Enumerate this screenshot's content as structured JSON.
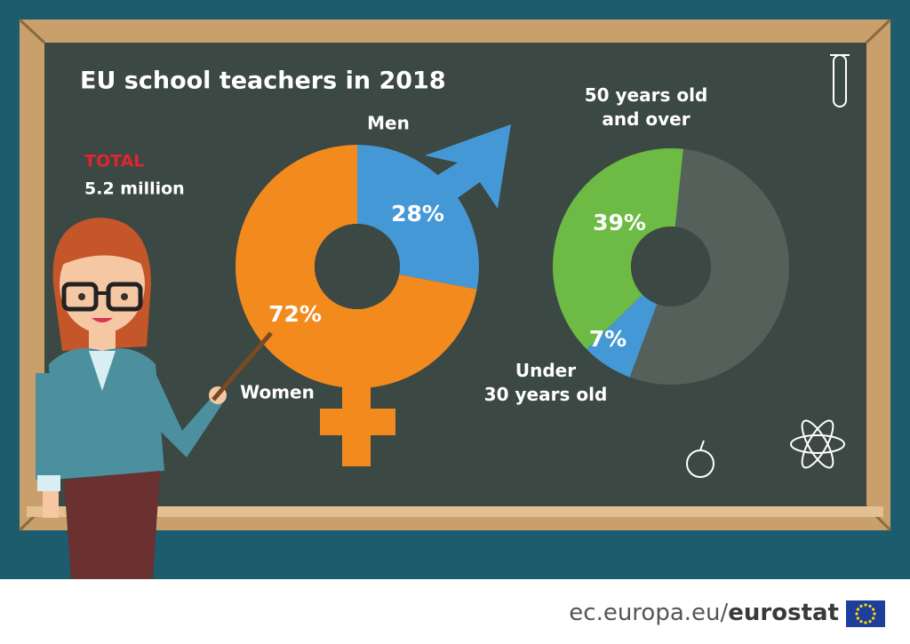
{
  "title": "EU school teachers in 2018",
  "total": {
    "label": "TOTAL",
    "value": "5.2 million"
  },
  "chart_data": [
    {
      "type": "donut",
      "categories": [
        "Men",
        "Women"
      ],
      "values": [
        28,
        72
      ],
      "value_labels": [
        "28%",
        "72%"
      ],
      "colors": [
        "#4598d6",
        "#f28a1e"
      ]
    },
    {
      "type": "donut",
      "categories": [
        null,
        "Under\n30 years old",
        "50 years old\nand over"
      ],
      "values": [
        54,
        7,
        39
      ],
      "value_labels": [
        null,
        "7%",
        "39%"
      ],
      "colors": [
        "#55605a",
        "#4598d6",
        "#6dbb45"
      ]
    }
  ],
  "footer": {
    "site": "ec.europa.eu/",
    "brand": "eurostat"
  }
}
